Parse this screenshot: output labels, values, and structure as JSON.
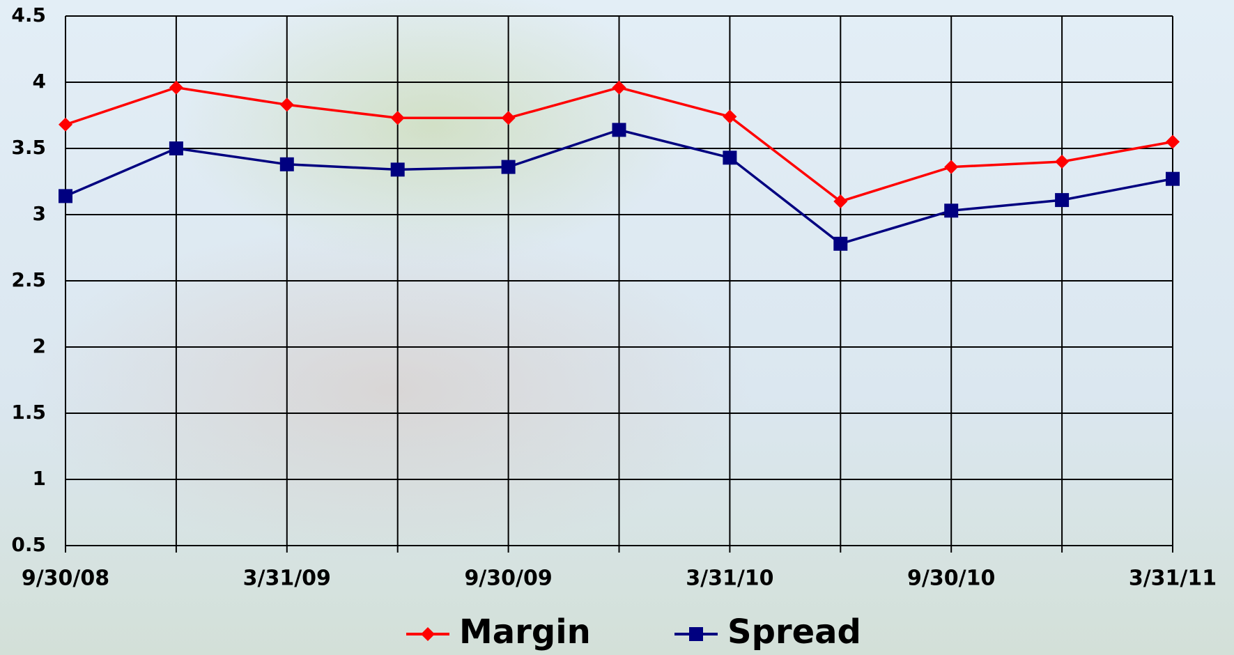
{
  "chart_data": {
    "type": "line",
    "categories": [
      "9/30/08",
      null,
      "3/31/09",
      null,
      "9/30/09",
      null,
      "3/31/10",
      null,
      "9/30/10",
      null,
      "3/31/11"
    ],
    "series": [
      {
        "name": "Margin",
        "color": "#ff0000",
        "marker": "diamond",
        "values": [
          3.68,
          3.96,
          3.83,
          3.73,
          3.73,
          3.96,
          3.74,
          3.1,
          3.36,
          3.4,
          3.55
        ]
      },
      {
        "name": "Spread",
        "color": "#000080",
        "marker": "square",
        "values": [
          3.14,
          3.5,
          3.38,
          3.34,
          3.36,
          3.64,
          3.43,
          2.78,
          3.03,
          3.11,
          3.27
        ]
      }
    ],
    "ylim": [
      0.5,
      4.5
    ],
    "yticks": [
      0.5,
      1,
      1.5,
      2,
      2.5,
      3,
      3.5,
      4,
      4.5
    ],
    "grid": true,
    "legend": "bottom"
  }
}
